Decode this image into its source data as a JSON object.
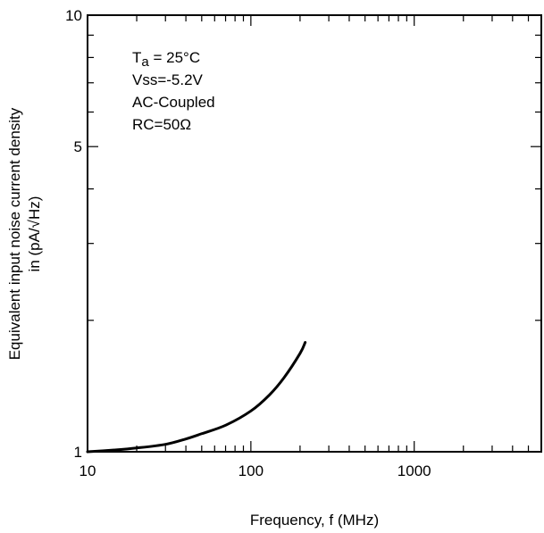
{
  "chart_data": {
    "type": "line",
    "xscale": "log",
    "yscale": "log",
    "xlim": [
      10,
      6000
    ],
    "ylim": [
      1,
      10
    ],
    "xticks": [
      {
        "value": 10,
        "label": "10"
      },
      {
        "value": 100,
        "label": "100"
      },
      {
        "value": 1000,
        "label": "1000"
      }
    ],
    "yticks": [
      {
        "value": 1,
        "label": "1"
      },
      {
        "value": 5,
        "label": "5"
      },
      {
        "value": 10,
        "label": "10"
      }
    ],
    "xlabel": "Frequency, f (MHz)",
    "ylabel_line1": "Equivalent input noise current density",
    "ylabel_line2": "in (pA/√Hz)",
    "annotations": {
      "ta_symbol": "T",
      "ta_sub": "a",
      "ta_rest": " = 25°C",
      "vss": "Vss=-5.2V",
      "coupling": "AC-Coupled",
      "rc": "RC=50Ω"
    },
    "grid": false,
    "line_color": "#000000",
    "series": [
      {
        "x": [
          10,
          15,
          20,
          30,
          40,
          50,
          70,
          100,
          130,
          160,
          200,
          215
        ],
        "y": [
          1.0,
          1.01,
          1.02,
          1.04,
          1.07,
          1.1,
          1.15,
          1.24,
          1.35,
          1.48,
          1.68,
          1.78
        ]
      }
    ]
  }
}
